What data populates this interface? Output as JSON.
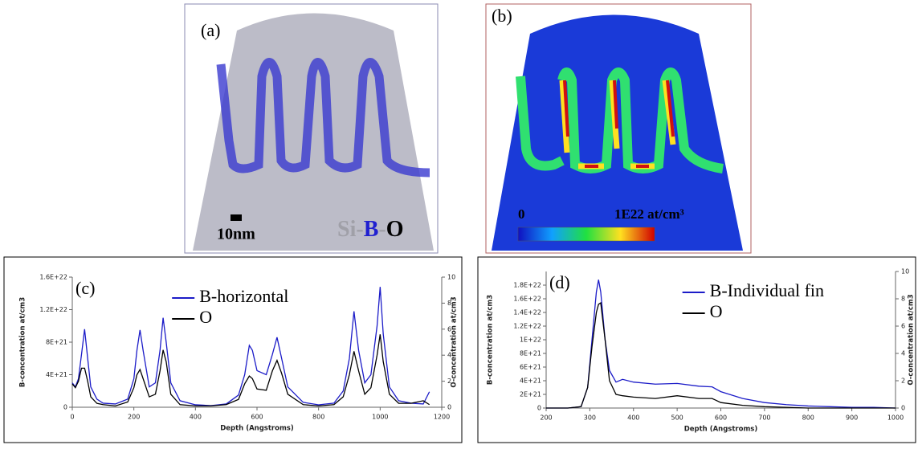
{
  "images": [
    {
      "label": "(a)",
      "scale_bar": "10nm",
      "legend": [
        "Si",
        "-",
        "B",
        "-",
        "O"
      ]
    },
    {
      "label": "(b)",
      "colorbar_min": "0",
      "colorbar_max": "1E22 at/cm³"
    }
  ],
  "chart_data": [
    {
      "type": "line",
      "panel_label": "(c)",
      "xlabel": "Depth (Angstroms)",
      "ylabel": "B-concentration at/cm3",
      "y2label": "O-concentration at/cm3",
      "legend": "upper center",
      "x": [
        0,
        10,
        20,
        30,
        40,
        50,
        60,
        80,
        100,
        140,
        180,
        200,
        210,
        220,
        230,
        250,
        270,
        285,
        295,
        305,
        320,
        350,
        400,
        450,
        500,
        540,
        560,
        575,
        585,
        600,
        630,
        650,
        665,
        680,
        700,
        750,
        800,
        850,
        880,
        900,
        915,
        930,
        950,
        970,
        990,
        1000,
        1010,
        1030,
        1060,
        1100,
        1140,
        1160
      ],
      "series": [
        {
          "name": "B-horizontal",
          "color": "#1c1cc8",
          "values": [
            3e+21,
            2.5e+21,
            3.5e+21,
            6.5e+21,
            9.6e+21,
            6e+21,
            2.5e+21,
            1e+21,
            5e+20,
            4e+20,
            1e+21,
            3.5e+21,
            7e+21,
            9.5e+21,
            7e+21,
            2.5e+21,
            3e+21,
            7e+21,
            1.1e+22,
            8e+21,
            3e+21,
            8e+20,
            3e+20,
            2e+20,
            4e+20,
            1.5e+21,
            4e+21,
            7.6e+21,
            7e+21,
            4.5e+21,
            4e+21,
            6.5e+21,
            8.6e+21,
            6e+21,
            2.5e+21,
            6e+20,
            3e+20,
            5e+20,
            2e+21,
            6e+21,
            1.18e+22,
            7e+21,
            3e+21,
            4e+21,
            1e+22,
            1.48e+22,
            9e+21,
            2.5e+21,
            8e+20,
            5e+20,
            4e+20,
            1.9e+21
          ]
        },
        {
          "name": "O",
          "color": "#000000",
          "axis": "y2",
          "values": [
            1.8,
            1.5,
            2,
            3,
            3,
            2,
            0.8,
            0.3,
            0.2,
            0.1,
            0.4,
            1.5,
            2.5,
            2.9,
            2.2,
            0.8,
            1,
            2.8,
            4.4,
            3.5,
            1,
            0.2,
            0.1,
            0.1,
            0.2,
            0.6,
            1.8,
            2.4,
            2.2,
            1.4,
            1.3,
            2.8,
            3.6,
            2.6,
            1,
            0.2,
            0.1,
            0.2,
            0.8,
            2.5,
            4.3,
            2.8,
            1,
            1.5,
            4,
            5.6,
            3.5,
            1,
            0.3,
            0.3,
            0.5,
            0.2
          ]
        }
      ],
      "xlim": [
        0,
        1200
      ],
      "xticks": [
        0,
        200,
        400,
        600,
        800,
        1000,
        1200
      ],
      "ylim": [
        0,
        1.6e+22
      ],
      "yticks": [
        0,
        {
          "value": 4e+21,
          "label": "4E+21"
        },
        {
          "value": 8e+21,
          "label": "8E+21"
        },
        {
          "value": 1.2e+22,
          "label": "1.2E+22"
        },
        {
          "value": 1.6e+22,
          "label": "1.6E+22"
        }
      ],
      "y2lim": [
        0,
        10
      ],
      "y2ticks": [
        0,
        2,
        4,
        6,
        8,
        10
      ]
    },
    {
      "type": "line",
      "panel_label": "(d)",
      "xlabel": "Depth (Angstroms)",
      "ylabel": "B-concentration at/cm3",
      "y2label": "O-concentration at/cm3",
      "legend": "upper right",
      "x": [
        200,
        250,
        280,
        295,
        305,
        315,
        320,
        325,
        335,
        345,
        360,
        375,
        400,
        450,
        500,
        550,
        580,
        600,
        650,
        700,
        750,
        800,
        850,
        900,
        950,
        1000
      ],
      "series": [
        {
          "name": "B-Individual fin",
          "color": "#1c1cc8",
          "values": [
            0,
            0,
            2e+20,
            3e+21,
            1e+22,
            1.7e+22,
            1.88e+22,
            1.7e+22,
            1e+22,
            5.5e+21,
            3.8e+21,
            4.2e+21,
            3.8e+21,
            3.5e+21,
            3.6e+21,
            3.2e+21,
            3.1e+21,
            2.4e+21,
            1.4e+21,
            8e+20,
            5e+20,
            3e+20,
            2e+20,
            1e+20,
            1e+20,
            0
          ]
        },
        {
          "name": "O",
          "color": "#000000",
          "axis": "y2",
          "values": [
            0,
            0,
            0.1,
            1.5,
            4.5,
            7,
            7.6,
            7.7,
            5,
            2,
            1,
            0.9,
            0.8,
            0.7,
            0.9,
            0.7,
            0.7,
            0.4,
            0.2,
            0.1,
            0.05,
            0,
            0,
            0,
            0,
            0
          ]
        }
      ],
      "xlim": [
        200,
        1000
      ],
      "xticks": [
        200,
        300,
        400,
        500,
        600,
        700,
        800,
        900,
        1000
      ],
      "ylim": [
        0,
        2e+22
      ],
      "yticks": [
        0,
        {
          "value": 2e+21,
          "label": "2E+21"
        },
        {
          "value": 4e+21,
          "label": "4E+21"
        },
        {
          "value": 6e+21,
          "label": "6E+21"
        },
        {
          "value": 8e+21,
          "label": "8E+21"
        },
        {
          "value": 1e+22,
          "label": "1E+22"
        },
        {
          "value": 1.2e+22,
          "label": "1.2E+22"
        },
        {
          "value": 1.4e+22,
          "label": "1.4E+22"
        },
        {
          "value": 1.6e+22,
          "label": "1.6E+22"
        },
        {
          "value": 1.8e+22,
          "label": "1.8E+22"
        }
      ],
      "y2lim": [
        0,
        10
      ],
      "y2ticks": [
        0,
        2,
        4,
        6,
        8,
        10
      ]
    }
  ]
}
